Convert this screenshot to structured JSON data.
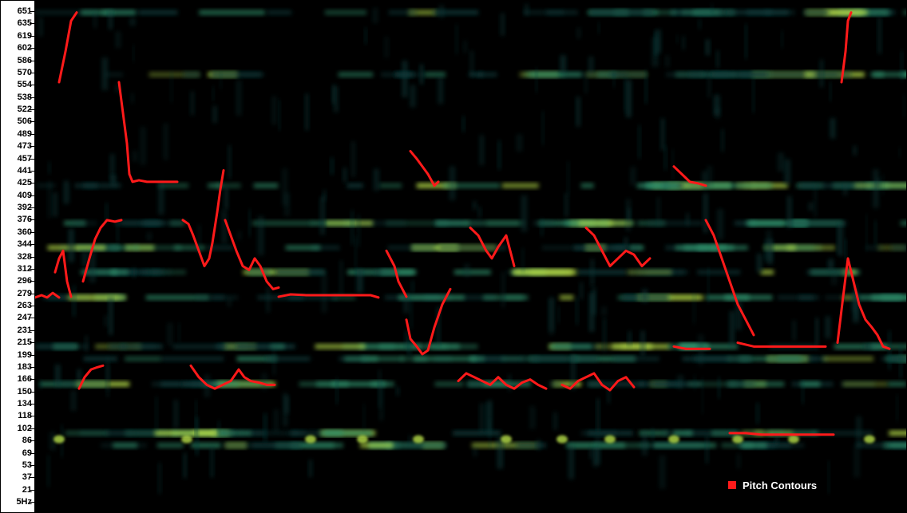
{
  "chart_data": {
    "type": "scatter",
    "title": "",
    "xlabel": "",
    "ylabel": "",
    "ylim": [
      5,
      660
    ],
    "y_ticks": [
      "651",
      "635",
      "619",
      "602",
      "586",
      "570",
      "554",
      "538",
      "522",
      "506",
      "489",
      "473",
      "457",
      "441",
      "425",
      "409",
      "392",
      "376",
      "360",
      "344",
      "328",
      "312",
      "296",
      "279",
      "263",
      "247",
      "231",
      "215",
      "199",
      "183",
      "166",
      "150",
      "134",
      "118",
      "102",
      "86",
      "69",
      "53",
      "37",
      "21",
      "5Hz"
    ],
    "legend": {
      "label": "Pitch Contours",
      "position": "bottom-right",
      "color": "#ff1a1a"
    },
    "background": "spectrogram",
    "colors": {
      "background": "#000000",
      "low": "#0e3b3a",
      "mid": "#2f8f6a",
      "high": "#b8e04a",
      "contour": "#ff1a1a"
    },
    "series": [
      {
        "name": "Pitch Contours",
        "segments": [
          [
            [
              0,
              279
            ],
            [
              8,
              282
            ],
            [
              15,
              279
            ],
            [
              22,
              285
            ],
            [
              30,
              279
            ]
          ],
          [
            [
              25,
              312
            ],
            [
              30,
              330
            ],
            [
              35,
              340
            ],
            [
              40,
              300
            ],
            [
              45,
              280
            ]
          ],
          [
            [
              30,
              560
            ],
            [
              38,
              600
            ],
            [
              45,
              640
            ],
            [
              52,
              651
            ]
          ],
          [
            [
              55,
              160
            ],
            [
              62,
              175
            ],
            [
              70,
              185
            ],
            [
              78,
              188
            ],
            [
              85,
              190
            ]
          ],
          [
            [
              60,
              300
            ],
            [
              68,
              330
            ],
            [
              75,
              355
            ],
            [
              82,
              370
            ],
            [
              90,
              380
            ],
            [
              100,
              378
            ],
            [
              108,
              380
            ]
          ],
          [
            [
              105,
              560
            ],
            [
              110,
              520
            ],
            [
              115,
              480
            ],
            [
              118,
              440
            ],
            [
              122,
              430
            ],
            [
              130,
              432
            ],
            [
              140,
              430
            ],
            [
              155,
              430
            ],
            [
              170,
              430
            ],
            [
              178,
              430
            ]
          ],
          [
            [
              185,
              380
            ],
            [
              192,
              375
            ],
            [
              198,
              360
            ],
            [
              205,
              340
            ],
            [
              212,
              320
            ],
            [
              218,
              330
            ],
            [
              222,
              350
            ],
            [
              228,
              390
            ],
            [
              232,
              420
            ],
            [
              236,
              445
            ]
          ],
          [
            [
              238,
              380
            ],
            [
              245,
              360
            ],
            [
              252,
              340
            ],
            [
              260,
              320
            ],
            [
              268,
              315
            ],
            [
              275,
              330
            ],
            [
              282,
              320
            ],
            [
              290,
              300
            ],
            [
              298,
              290
            ],
            [
              305,
              292
            ]
          ],
          [
            [
              195,
              190
            ],
            [
              205,
              175
            ],
            [
              215,
              165
            ],
            [
              225,
              160
            ],
            [
              235,
              165
            ],
            [
              245,
              170
            ],
            [
              255,
              185
            ],
            [
              262,
              175
            ],
            [
              270,
              170
            ],
            [
              280,
              168
            ],
            [
              290,
              165
            ],
            [
              300,
              165
            ]
          ],
          [
            [
              305,
              280
            ],
            [
              320,
              283
            ],
            [
              340,
              282
            ],
            [
              360,
              282
            ],
            [
              380,
              282
            ],
            [
              400,
              282
            ],
            [
              420,
              282
            ],
            [
              430,
              279
            ]
          ],
          [
            [
              440,
              340
            ],
            [
              450,
              320
            ],
            [
              455,
              300
            ],
            [
              460,
              290
            ],
            [
              465,
              280
            ]
          ],
          [
            [
              465,
              250
            ],
            [
              470,
              225
            ],
            [
              478,
              215
            ],
            [
              485,
              205
            ],
            [
              492,
              210
            ],
            [
              500,
              240
            ],
            [
              510,
              270
            ],
            [
              520,
              290
            ]
          ],
          [
            [
              470,
              470
            ],
            [
              478,
              460
            ],
            [
              485,
              450
            ],
            [
              492,
              440
            ],
            [
              500,
              425
            ],
            [
              505,
              430
            ]
          ],
          [
            [
              530,
              170
            ],
            [
              540,
              180
            ],
            [
              550,
              175
            ],
            [
              560,
              170
            ],
            [
              570,
              165
            ],
            [
              580,
              175
            ],
            [
              590,
              165
            ],
            [
              600,
              160
            ],
            [
              610,
              168
            ],
            [
              620,
              172
            ],
            [
              630,
              165
            ],
            [
              640,
              160
            ]
          ],
          [
            [
              545,
              370
            ],
            [
              555,
              360
            ],
            [
              565,
              340
            ],
            [
              572,
              330
            ],
            [
              580,
              345
            ],
            [
              590,
              360
            ],
            [
              595,
              340
            ],
            [
              600,
              320
            ]
          ],
          [
            [
              690,
              370
            ],
            [
              700,
              360
            ],
            [
              710,
              340
            ],
            [
              720,
              320
            ],
            [
              730,
              330
            ],
            [
              740,
              340
            ],
            [
              750,
              335
            ],
            [
              760,
              320
            ],
            [
              770,
              330
            ]
          ],
          [
            [
              660,
              165
            ],
            [
              670,
              160
            ],
            [
              680,
              170
            ],
            [
              690,
              175
            ],
            [
              700,
              180
            ],
            [
              710,
              165
            ],
            [
              720,
              158
            ],
            [
              730,
              170
            ],
            [
              740,
              175
            ],
            [
              750,
              162
            ]
          ],
          [
            [
              800,
              450
            ],
            [
              810,
              440
            ],
            [
              820,
              430
            ],
            [
              830,
              428
            ],
            [
              840,
              425
            ]
          ],
          [
            [
              800,
              215
            ],
            [
              815,
              212
            ],
            [
              830,
              212
            ],
            [
              845,
              212
            ]
          ],
          [
            [
              840,
              380
            ],
            [
              850,
              360
            ],
            [
              860,
              330
            ],
            [
              870,
              300
            ],
            [
              880,
              270
            ],
            [
              890,
              250
            ],
            [
              900,
              230
            ]
          ],
          [
            [
              880,
              220
            ],
            [
              900,
              215
            ],
            [
              920,
              215
            ],
            [
              940,
              215
            ],
            [
              960,
              215
            ],
            [
              980,
              215
            ],
            [
              990,
              215
            ]
          ],
          [
            [
              870,
              102
            ],
            [
              890,
              102
            ],
            [
              910,
              100
            ],
            [
              930,
              100
            ],
            [
              950,
              100
            ],
            [
              970,
              100
            ],
            [
              990,
              100
            ],
            [
              1000,
              100
            ]
          ],
          [
            [
              1005,
              220
            ],
            [
              1012,
              280
            ],
            [
              1018,
              330
            ],
            [
              1025,
              300
            ],
            [
              1032,
              270
            ],
            [
              1040,
              250
            ],
            [
              1048,
              240
            ],
            [
              1055,
              230
            ],
            [
              1062,
              215
            ],
            [
              1070,
              212
            ]
          ],
          [
            [
              1010,
              560
            ],
            [
              1015,
              600
            ],
            [
              1018,
              640
            ],
            [
              1022,
              651
            ]
          ]
        ]
      }
    ],
    "spectral_bands_hz": [
      651,
      570,
      425,
      376,
      344,
      312,
      279,
      215,
      199,
      166,
      102,
      86
    ]
  }
}
